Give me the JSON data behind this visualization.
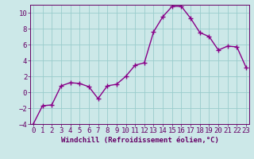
{
  "x": [
    0,
    1,
    2,
    3,
    4,
    5,
    6,
    7,
    8,
    9,
    10,
    11,
    12,
    13,
    14,
    15,
    16,
    17,
    18,
    19,
    20,
    21,
    22,
    23
  ],
  "y": [
    -4.0,
    -1.7,
    -1.6,
    0.8,
    1.2,
    1.1,
    0.7,
    -0.8,
    0.8,
    1.0,
    2.0,
    3.4,
    3.7,
    7.6,
    9.5,
    10.8,
    10.8,
    9.3,
    7.5,
    7.0,
    5.3,
    5.8,
    5.7,
    3.1
  ],
  "line_color": "#880088",
  "marker": "+",
  "marker_size": 4,
  "bg_color": "#cce8e8",
  "grid_color": "#99cccc",
  "xlabel": "Windchill (Refroidissement éolien,°C)",
  "ylim": [
    -4,
    11
  ],
  "xlim": [
    -0.3,
    23.3
  ],
  "yticks": [
    -4,
    -2,
    0,
    2,
    4,
    6,
    8,
    10
  ],
  "xticks": [
    0,
    1,
    2,
    3,
    4,
    5,
    6,
    7,
    8,
    9,
    10,
    11,
    12,
    13,
    14,
    15,
    16,
    17,
    18,
    19,
    20,
    21,
    22,
    23
  ],
  "axis_color": "#660066",
  "font_size_label": 6.5,
  "font_size_tick": 6.5,
  "line_width": 1.0
}
